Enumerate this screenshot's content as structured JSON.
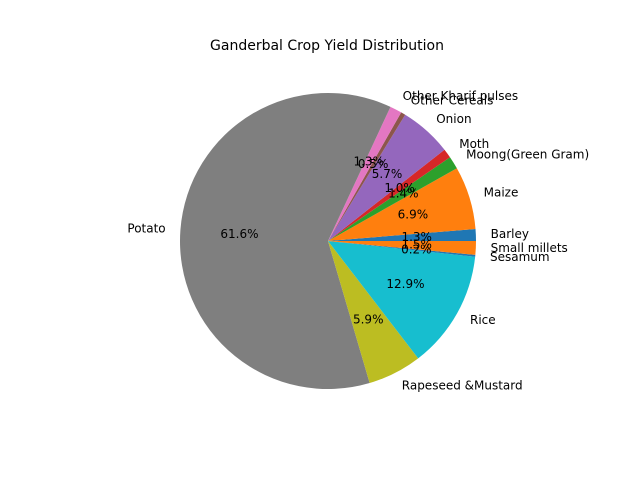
{
  "chart_data": {
    "type": "pie",
    "title": "Ganderbal Crop Yield Distribution",
    "start_angle_deg": 0,
    "direction": "counterclockwise",
    "slices": [
      {
        "label": "Barley",
        "value": 1.3,
        "pct_label": "1.3%",
        "color": "#1f77b4"
      },
      {
        "label": "Maize",
        "value": 6.9,
        "pct_label": "6.9%",
        "color": "#ff7f0e"
      },
      {
        "label": "Moong(Green Gram)",
        "value": 1.4,
        "pct_label": "1.4%",
        "color": "#2ca02c"
      },
      {
        "label": "Moth",
        "value": 1.0,
        "pct_label": "1.0%",
        "color": "#d62728"
      },
      {
        "label": "Onion",
        "value": 5.7,
        "pct_label": "5.7%",
        "color": "#9467bd"
      },
      {
        "label": "Other Cereals",
        "value": 0.5,
        "pct_label": "0.5%",
        "color": "#8c564b"
      },
      {
        "label": "Other Kharif pulses",
        "value": 1.3,
        "pct_label": "1.3%",
        "color": "#e377c2"
      },
      {
        "label": "Potato",
        "value": 61.6,
        "pct_label": "61.6%",
        "color": "#7f7f7f"
      },
      {
        "label": "Rapeseed &Mustard",
        "value": 5.9,
        "pct_label": "5.9%",
        "color": "#bcbd22"
      },
      {
        "label": "Rice",
        "value": 12.9,
        "pct_label": "12.9%",
        "color": "#17becf"
      },
      {
        "label": "Sesamum",
        "value": 0.2,
        "pct_label": "0.2%",
        "color": "#1f77b4"
      },
      {
        "label": "Small millets",
        "value": 1.5,
        "pct_label": "1.5%",
        "color": "#ff7f0e"
      }
    ]
  }
}
